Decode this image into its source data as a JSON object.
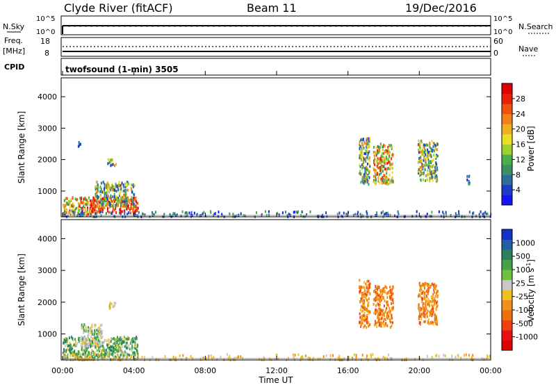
{
  "header": {
    "title": "Clyde River (fitACF)",
    "beam": "Beam 11",
    "date": "19/Dec/2016"
  },
  "strip_panels": {
    "nsky": {
      "label": "N.Sky",
      "ticks": [
        "10^5",
        "10^0"
      ],
      "right_label": "N.Search",
      "right_ticks": [
        "10^5",
        "10^0"
      ]
    },
    "freq": {
      "label_line1": "Freq.",
      "label_line2": "[MHz]",
      "ticks": [
        "18",
        "8"
      ],
      "right_label": "Nave",
      "right_ticks": [
        "60",
        "0"
      ]
    },
    "cpid": {
      "label": "CPID",
      "text": "twofsound (1-min) 3505"
    }
  },
  "colorbars": {
    "power": {
      "label": "Power [dB]",
      "ticks": [
        "28",
        "24",
        "20",
        "16",
        "12",
        "8",
        "4"
      ],
      "colors": [
        "#1414ff",
        "#1c3cc8",
        "#2c6e9a",
        "#3c9068",
        "#48b048",
        "#a0d030",
        "#e8e020",
        "#f0b020",
        "#f08018",
        "#f05010",
        "#e82008",
        "#e00000"
      ]
    },
    "velocity": {
      "label": "Velocity [m s",
      "label_sup": "-1",
      "label_end": "]",
      "ticks": [
        "1000",
        "500",
        "100",
        "25",
        "-25",
        "-100",
        "-500",
        "-1000"
      ],
      "colors": [
        "#1430c8",
        "#2060a0",
        "#2c8060",
        "#48a048",
        "#70c040",
        "#c8c8c8",
        "#f0c020",
        "#f09018",
        "#f07010",
        "#f04010",
        "#e81010",
        "#e00000"
      ]
    }
  },
  "chart_data": [
    {
      "type": "heatmap",
      "name": "Power",
      "ylabel": "Slant Range [km]",
      "yticks": [
        "4000",
        "3000",
        "2000",
        "1000"
      ],
      "ylim": [
        180,
        4600
      ],
      "x_hours": [
        0,
        24
      ],
      "clusters": [
        {
          "t": [
            0.0,
            1.6
          ],
          "r": [
            200,
            800
          ],
          "level": "high"
        },
        {
          "t": [
            1.5,
            4.2
          ],
          "r": [
            300,
            800
          ],
          "level": "very-high"
        },
        {
          "t": [
            1.8,
            4.0
          ],
          "r": [
            500,
            1300
          ],
          "level": "mid"
        },
        {
          "t": [
            2.5,
            3.0
          ],
          "r": [
            1800,
            2000
          ],
          "level": "mid"
        },
        {
          "t": [
            0.8,
            1.0
          ],
          "r": [
            2400,
            2600
          ],
          "level": "low"
        },
        {
          "t": [
            16.6,
            17.2
          ],
          "r": [
            1200,
            2700
          ],
          "level": "mid"
        },
        {
          "t": [
            17.4,
            18.5
          ],
          "r": [
            1200,
            2500
          ],
          "level": "high"
        },
        {
          "t": [
            19.9,
            21.0
          ],
          "r": [
            1300,
            2600
          ],
          "level": "mid"
        },
        {
          "t": [
            22.6,
            22.8
          ],
          "r": [
            1200,
            1500
          ],
          "level": "low"
        },
        {
          "t": [
            0.0,
            24.0
          ],
          "r": [
            180,
            350
          ],
          "level": "low"
        }
      ]
    },
    {
      "type": "heatmap",
      "name": "Velocity",
      "ylabel": "Slant Range [km]",
      "yticks": [
        "4000",
        "3000",
        "2000",
        "1000"
      ],
      "ylim": [
        180,
        4600
      ],
      "xlabel": "Time UT",
      "xticks": [
        "00:00",
        "04:00",
        "08:00",
        "12:00",
        "16:00",
        "20:00",
        "00:00"
      ],
      "x_hours": [
        0,
        24
      ],
      "clusters": [
        {
          "t": [
            0.0,
            4.2
          ],
          "r": [
            200,
            900
          ],
          "level": "mixed-green-gray"
        },
        {
          "t": [
            1.0,
            2.2
          ],
          "r": [
            600,
            1300
          ],
          "level": "gray"
        },
        {
          "t": [
            2.5,
            3.0
          ],
          "r": [
            1800,
            2000
          ],
          "level": "gray-yellow"
        },
        {
          "t": [
            16.6,
            17.2
          ],
          "r": [
            1200,
            2700
          ],
          "level": "orange"
        },
        {
          "t": [
            17.4,
            18.5
          ],
          "r": [
            1200,
            2500
          ],
          "level": "orange"
        },
        {
          "t": [
            19.9,
            21.0
          ],
          "r": [
            1300,
            2600
          ],
          "level": "orange"
        },
        {
          "t": [
            0.0,
            24.0
          ],
          "r": [
            180,
            350
          ],
          "level": "yellow"
        }
      ]
    }
  ]
}
